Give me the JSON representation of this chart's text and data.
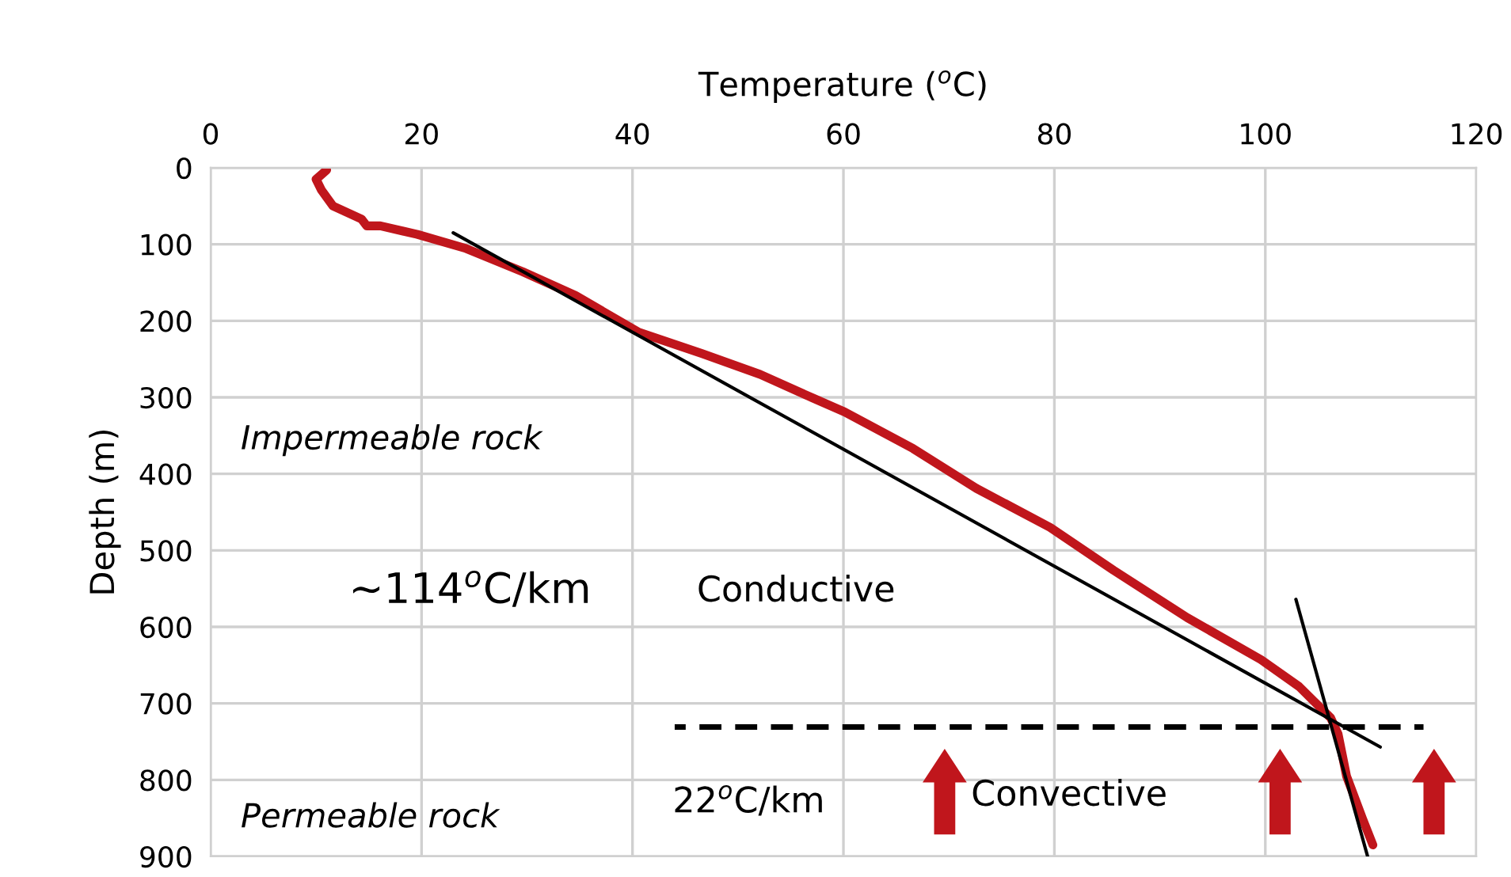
{
  "chart_data": {
    "type": "line",
    "xlabel": "Temperature ($^{o}$C)",
    "ylabel": "Depth (m)",
    "xlim": [
      0,
      120
    ],
    "xticks": [
      0,
      20,
      40,
      60,
      80,
      100,
      120
    ],
    "ylim": [
      900,
      0
    ],
    "yticks": [
      0,
      100,
      200,
      300,
      400,
      500,
      600,
      700,
      800,
      900
    ],
    "grid": true,
    "series": [
      {
        "color": "#c0161c",
        "line_style": "solid",
        "x": [
          11.0,
          10.0,
          10.5,
          11.6,
          14.3,
          14.8,
          16.1,
          19.6,
          24.1,
          29.6,
          34.6,
          40.6,
          46.6,
          52.1,
          57.1,
          60.1,
          66.6,
          72.6,
          79.6,
          85.6,
          92.6,
          99.6,
          103.2,
          106.2,
          106.9,
          107.7,
          109.2,
          110.2
        ],
        "values": [
          3,
          15,
          29,
          50,
          67,
          76,
          76,
          87,
          105,
          136,
          167,
          215,
          243,
          270,
          301,
          319,
          367,
          419,
          470,
          526,
          588,
          643,
          678,
          719,
          740,
          795,
          850,
          885
        ]
      },
      {
        "color": "#000000",
        "line_style": "solid",
        "x": [
          23.0,
          110.9
        ],
        "values": [
          85,
          757
        ]
      },
      {
        "color": "#000000",
        "line_style": "solid",
        "x": [
          102.9,
          109.7
        ],
        "values": [
          564,
          900
        ]
      },
      {
        "color": "#000000",
        "line_style": "dashed",
        "x": [
          44,
          115
        ],
        "values": [
          731,
          731
        ]
      }
    ],
    "annotations": [
      "Impermeable rock",
      "~114$^{o}$C/km",
      "Conductive",
      "22$^{o}$C/km",
      "Convective",
      "Permeable rock"
    ]
  }
}
